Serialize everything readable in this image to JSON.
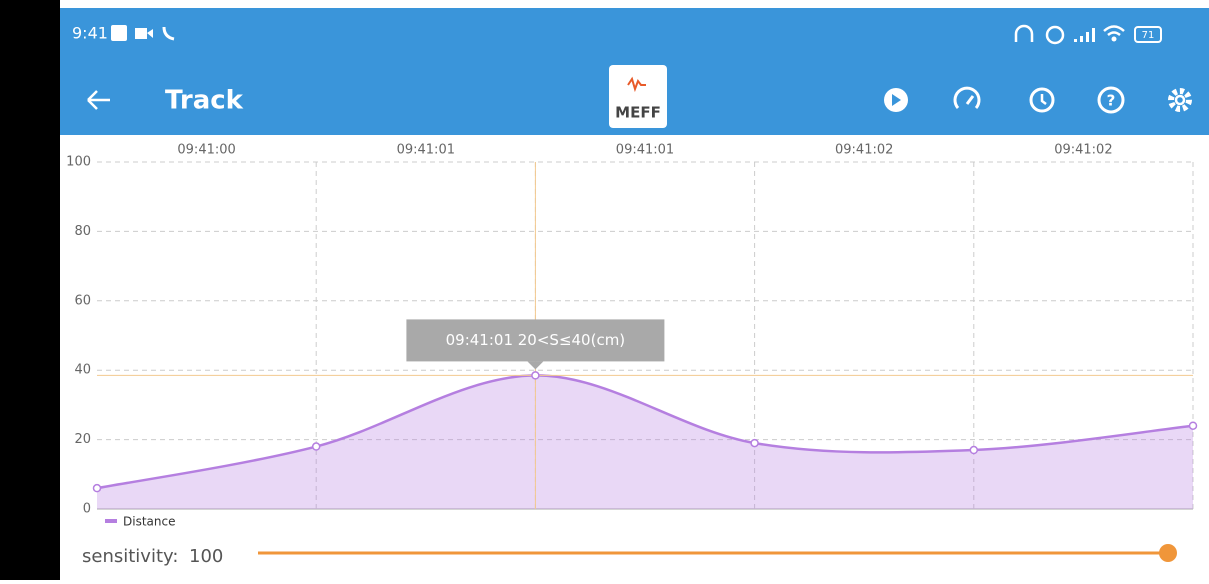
{
  "status_bar": {
    "time": "9:41",
    "battery": "71"
  },
  "app_bar": {
    "title": "Track",
    "logo": "MEFF"
  },
  "chart_data": {
    "type": "area",
    "top_axis_labels": [
      "09:41:00",
      "09:41:01",
      "09:41:01",
      "09:41:02",
      "09:41:02"
    ],
    "series": [
      {
        "name": "Distance",
        "color": "#b57fe0",
        "values": [
          6,
          18,
          38.5,
          19,
          17,
          24
        ]
      }
    ],
    "ylim": [
      0,
      100
    ],
    "yticks": [
      0,
      20,
      40,
      60,
      80,
      100
    ],
    "grid": true,
    "tooltip": {
      "index": 2,
      "text": "09:41:01 20<S≤40(cm)"
    }
  },
  "slider": {
    "label": "sensitivity:",
    "value": 100,
    "color": "#f0963a"
  }
}
